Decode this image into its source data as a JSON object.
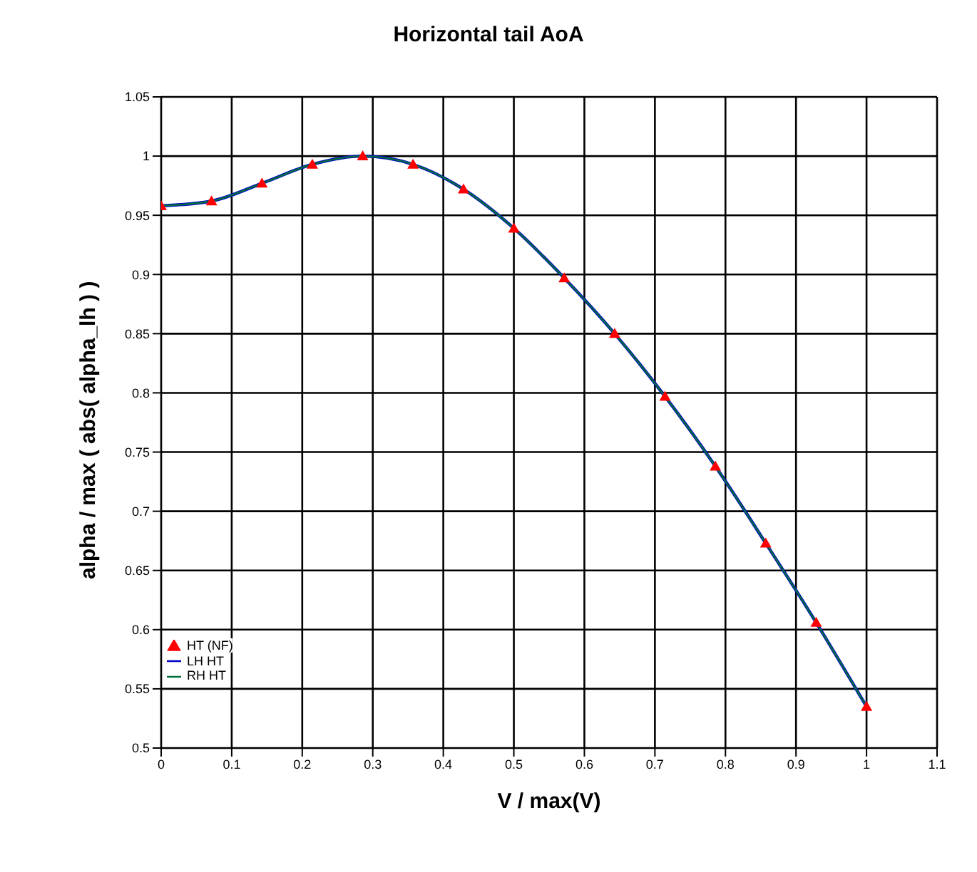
{
  "chart_data": {
    "type": "line",
    "title": "Horizontal tail AoA",
    "xlabel": "V / max(V)",
    "ylabel": "alpha / max ( abs( alpha_lh ) )",
    "x": [
      0,
      0.0714,
      0.1429,
      0.2143,
      0.2857,
      0.3571,
      0.4286,
      0.5,
      0.5714,
      0.6429,
      0.7143,
      0.7857,
      0.8571,
      0.9286,
      1
    ],
    "series": [
      {
        "name": "LH HT",
        "color": "#0000cc",
        "marker": "none",
        "values": [
          0.958,
          0.962,
          0.977,
          0.993,
          1.0,
          0.993,
          0.972,
          0.939,
          0.897,
          0.85,
          0.797,
          0.738,
          0.673,
          0.606,
          0.535
        ]
      },
      {
        "name": "RH HT",
        "color": "#006f3c",
        "marker": "none",
        "values": [
          0.958,
          0.962,
          0.977,
          0.993,
          1.0,
          0.993,
          0.972,
          0.939,
          0.897,
          0.85,
          0.797,
          0.738,
          0.673,
          0.606,
          0.535
        ]
      },
      {
        "name": "HT (NF)",
        "color": "#ff0000",
        "type": "scatter",
        "marker": "triangle",
        "values": [
          0.958,
          0.962,
          0.977,
          0.993,
          1.0,
          0.993,
          0.972,
          0.939,
          0.897,
          0.85,
          0.797,
          0.738,
          0.673,
          0.606,
          0.535
        ]
      }
    ],
    "xlim": [
      0,
      1.1
    ],
    "xticks": [
      0,
      0.1,
      0.2,
      0.3,
      0.4,
      0.5,
      0.6,
      0.7,
      0.8,
      0.9,
      1,
      1.1
    ],
    "ylim": [
      0.5,
      1.05
    ],
    "yticks": [
      0.5,
      0.55,
      0.6,
      0.65,
      0.7,
      0.75,
      0.8,
      0.85,
      0.9,
      0.95,
      1,
      1.05
    ],
    "grid": true,
    "legend": "bottom left",
    "line_style": "solid"
  }
}
